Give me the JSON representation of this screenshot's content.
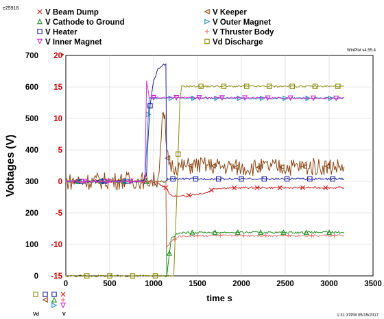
{
  "run_id": "e25918",
  "version": "WinPlot v4.55.4",
  "timestamp": "1:31:37PM 05/15/2017",
  "chart_data": {
    "type": "line",
    "xlabel": "time  s",
    "ylabel": "Voltages (V)",
    "xlim": [
      0,
      3500
    ],
    "ylim_left": [
      0,
      700
    ],
    "ylim_right": [
      -15,
      20
    ],
    "right_axis_multiplier_label": "*",
    "x_ticks": [
      0,
      500,
      1000,
      1500,
      2000,
      2500,
      3000,
      3500
    ],
    "y_left_ticks": [
      0,
      100,
      200,
      300,
      400,
      500,
      600,
      700
    ],
    "y_right_ticks": [
      -15,
      -10,
      -5,
      0,
      5,
      10,
      15,
      20
    ],
    "grid": true,
    "legend": [
      {
        "label": "V  Beam Dump",
        "color": "#cc2020",
        "marker": "x"
      },
      {
        "label": "V  Keeper",
        "color": "#8b4513",
        "marker": "arrow-left"
      },
      {
        "label": "V  Cathode to Ground",
        "color": "#1a8c1a",
        "marker": "triangle"
      },
      {
        "label": "V  Outer Magnet",
        "color": "#2090c0",
        "marker": "arrow-right"
      },
      {
        "label": "V  Heater",
        "color": "#2020a0",
        "marker": "square"
      },
      {
        "label": "V  Thruster Body",
        "color": "#e07070",
        "marker": "plus"
      },
      {
        "label": "V  Inner Magnet",
        "color": "#cc30cc",
        "marker": "triangle-down"
      },
      {
        "label": "Vd  Discharge",
        "color": "#8c8c10",
        "marker": "square-open"
      }
    ],
    "series": [
      {
        "name": "V  Beam Dump",
        "axis": "right",
        "color": "#cc2020",
        "x": [
          0,
          1000,
          1140,
          1200,
          1300,
          1500,
          1600,
          1700,
          2000,
          2500,
          3000,
          3170
        ],
        "y": [
          0,
          0,
          -1.0,
          -2.3,
          -2.4,
          -2.0,
          -1.8,
          -1.1,
          -1.0,
          -1.0,
          -1.0,
          -1.0
        ]
      },
      {
        "name": "V  Keeper",
        "axis": "right",
        "color": "#8b4513",
        "x": [
          0,
          1050,
          1100,
          1130,
          1150,
          1200,
          1300,
          1500,
          2000,
          2500,
          3000,
          3170
        ],
        "y": [
          0,
          0.2,
          10,
          9.5,
          4,
          2.5,
          2.3,
          2.6,
          2.2,
          2.3,
          2.4,
          2.3
        ]
      },
      {
        "name": "V  Cathode to Ground",
        "axis": "right",
        "color": "#1a8c1a",
        "x": [
          0,
          1100,
          1140,
          1150,
          1200,
          1250,
          1300,
          1500,
          2000,
          2500,
          3000,
          3170
        ],
        "y": [
          0,
          0,
          0,
          -15,
          -9,
          -8.5,
          -8.2,
          -8.1,
          -8.1,
          -8.1,
          -8.1,
          -8.1
        ]
      },
      {
        "name": "V  Outer Magnet",
        "axis": "right",
        "color": "#2090c0",
        "x": [
          0,
          900,
          950,
          1000,
          3170
        ],
        "y": [
          0,
          0,
          13.3,
          13.2,
          13.2
        ]
      },
      {
        "name": "V  Heater",
        "axis": "right",
        "color": "#2020a0",
        "x": [
          0,
          880,
          920,
          930,
          960,
          1000,
          1050,
          1100,
          1140,
          1150,
          1160,
          1300,
          2000,
          3170
        ],
        "y": [
          0,
          0,
          1,
          5,
          12,
          16,
          17.8,
          18.5,
          18.5,
          0,
          0.4,
          0.4,
          0.4,
          0.4
        ]
      },
      {
        "name": "V  Thruster Body",
        "axis": "right",
        "color": "#e07070",
        "x": [
          0,
          1140,
          1150,
          1200,
          1300,
          1500,
          2000,
          2500,
          3000,
          3170
        ],
        "y": [
          0,
          0,
          -10.5,
          -9.5,
          -8.7,
          -8.6,
          -8.6,
          -8.6,
          -8.6,
          -8.6
        ]
      },
      {
        "name": "V  Inner Magnet",
        "axis": "right",
        "color": "#cc30cc",
        "x": [
          0,
          900,
          920,
          950,
          1000,
          3170
        ],
        "y": [
          0,
          0,
          16,
          13.3,
          13.3,
          13.2
        ]
      },
      {
        "name": "Vd  Discharge",
        "axis": "right",
        "color": "#8c8c10",
        "x": [
          0,
          1230,
          1270,
          1300,
          1320,
          3170
        ],
        "y": [
          -15,
          -15,
          0,
          13,
          15.1,
          15.1
        ]
      }
    ],
    "bottom_legend_labels": [
      "Vd",
      "V"
    ]
  }
}
